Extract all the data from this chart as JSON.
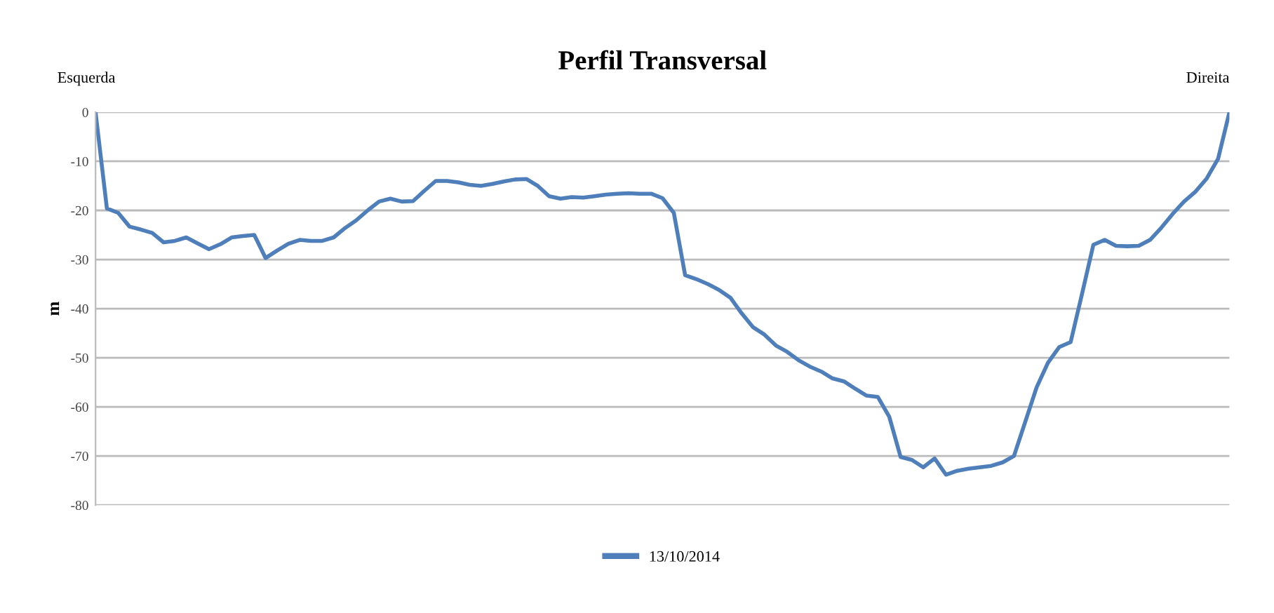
{
  "chart_data": {
    "type": "line",
    "title": "Perfil Transversal",
    "ylabel": "m",
    "annotations": [
      "Esquerda",
      "Direita"
    ],
    "categories": [
      null,
      null,
      null,
      null,
      null,
      null,
      null,
      null,
      null,
      null,
      null,
      null,
      null,
      null,
      null,
      null,
      null,
      null,
      null,
      null,
      null,
      null,
      null,
      null,
      null,
      null,
      null,
      null,
      null,
      null,
      null,
      null,
      null,
      null,
      null,
      null,
      null,
      null,
      null,
      null,
      null,
      null,
      null,
      null,
      null,
      null,
      null,
      null,
      null,
      null,
      null,
      null,
      null,
      null,
      null,
      null,
      null,
      null,
      null,
      null,
      null,
      null,
      null,
      null,
      null,
      null,
      null,
      null,
      null,
      null,
      null,
      null,
      null,
      null,
      null,
      null,
      null,
      null,
      null,
      null,
      null,
      null,
      null,
      null,
      null,
      null,
      null,
      null,
      null,
      null,
      null,
      null,
      null,
      null,
      null,
      null,
      null,
      null,
      null,
      null,
      null
    ],
    "series": [
      {
        "name": "13/10/2014",
        "color": "#4f7fba",
        "values": [
          0,
          -19.6,
          -20.5,
          -23.3,
          -23.9,
          -24.6,
          -26.5,
          -26.2,
          -25.5,
          -26.7,
          -27.9,
          -26.9,
          -25.5,
          -25.2,
          -25,
          -29.7,
          -28.2,
          -26.8,
          -26,
          -26.2,
          -26.2,
          -25.5,
          -23.6,
          -22,
          -20,
          -18.2,
          -17.6,
          -18.2,
          -18.1,
          -16,
          -14,
          -14,
          -14.3,
          -14.8,
          -15,
          -14.6,
          -14.1,
          -13.7,
          -13.6,
          -15,
          -17.1,
          -17.6,
          -17.3,
          -17.4,
          -17.1,
          -16.8,
          -16.6,
          -16.5,
          -16.6,
          -16.6,
          -17.5,
          -20.5,
          -33.2,
          -34,
          -35,
          -36.2,
          -37.8,
          -41,
          -43.8,
          -45.3,
          -47.5,
          -48.8,
          -50.5,
          -51.8,
          -52.8,
          -54.2,
          -54.8,
          -56.3,
          -57.7,
          -58,
          -62,
          -70.2,
          -70.8,
          -72.3,
          -70.5,
          -73.8,
          -73,
          -72.6,
          -72.3,
          -72,
          -71.3,
          -70,
          -63,
          -56,
          -51,
          -47.8,
          -46.8,
          -37,
          -27,
          -26,
          -27.2,
          -27.3,
          -27.2,
          -26,
          -23.5,
          -20.7,
          -18.2,
          -16.2,
          -13.5,
          -9.5,
          0
        ]
      }
    ],
    "ylim": [
      -80,
      0
    ],
    "yticks": [
      -80,
      -70,
      -60,
      -50,
      -40,
      -30,
      -20,
      -10,
      0
    ],
    "grid": "y",
    "legend": "bottom",
    "marker": "none",
    "line_style": "solid",
    "tick_labels": "y"
  }
}
